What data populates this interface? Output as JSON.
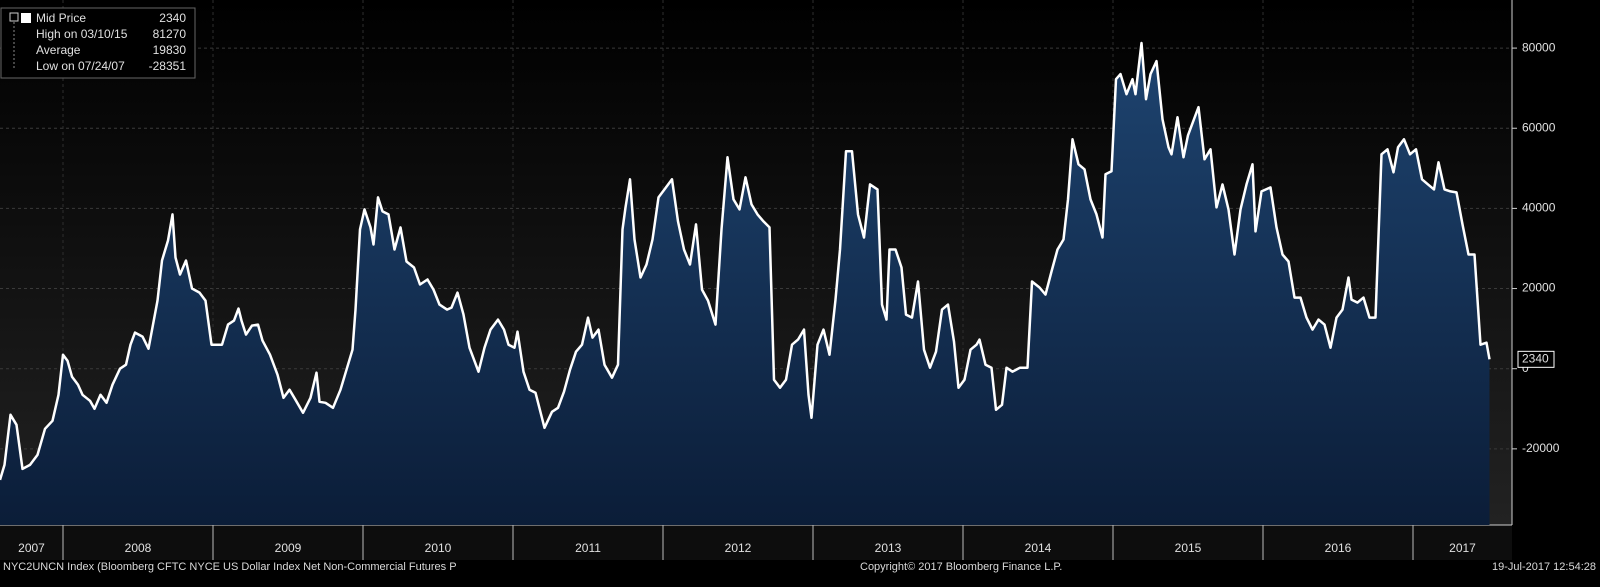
{
  "chart_data": {
    "type": "area",
    "series": [
      {
        "name": "Mid Price",
        "color": "#ffffff",
        "x": [
          2007.58,
          2007.61,
          2007.65,
          2007.69,
          2007.73,
          2007.78,
          2007.83,
          2007.88,
          2007.93,
          2007.97,
          2008.0,
          2008.03,
          2008.06,
          2008.1,
          2008.13,
          2008.18,
          2008.21,
          2008.25,
          2008.29,
          2008.33,
          2008.38,
          2008.42,
          2008.45,
          2008.48,
          2008.53,
          2008.57,
          2008.6,
          2008.63,
          2008.66,
          2008.7,
          2008.73,
          2008.75,
          2008.78,
          2008.82,
          2008.86,
          2008.91,
          2008.95,
          2008.99,
          2009.06,
          2009.1,
          2009.14,
          2009.17,
          2009.19,
          2009.22,
          2009.26,
          2009.3,
          2009.33,
          2009.38,
          2009.43,
          2009.47,
          2009.51,
          2009.55,
          2009.6,
          2009.65,
          2009.69,
          2009.71,
          2009.75,
          2009.8,
          2009.85,
          2009.89,
          2009.93,
          2009.95,
          2009.98,
          2010.01,
          2010.05,
          2010.07,
          2010.1,
          2010.13,
          2010.17,
          2010.21,
          2010.25,
          2010.29,
          2010.34,
          2010.38,
          2010.43,
          2010.47,
          2010.51,
          2010.56,
          2010.59,
          2010.63,
          2010.67,
          2010.71,
          2010.77,
          2010.81,
          2010.85,
          2010.9,
          2010.94,
          2010.97,
          2011.01,
          2011.03,
          2011.07,
          2011.11,
          2011.15,
          2011.21,
          2011.26,
          2011.3,
          2011.34,
          2011.38,
          2011.42,
          2011.46,
          2011.5,
          2011.53,
          2011.57,
          2011.61,
          2011.66,
          2011.7,
          2011.73,
          2011.75,
          2011.78,
          2011.81,
          2011.85,
          2011.89,
          2011.93,
          2011.97,
          2012.01,
          2012.06,
          2012.1,
          2012.14,
          2012.18,
          2012.22,
          2012.26,
          2012.3,
          2012.35,
          2012.39,
          2012.43,
          2012.47,
          2012.51,
          2012.55,
          2012.59,
          2012.63,
          2012.67,
          2012.71,
          2012.74,
          2012.78,
          2012.82,
          2012.86,
          2012.9,
          2012.94,
          2012.97,
          2012.99,
          2013.03,
          2013.07,
          2013.11,
          2013.15,
          2013.18,
          2013.22,
          2013.26,
          2013.3,
          2013.34,
          2013.38,
          2013.43,
          2013.46,
          2013.49,
          2013.51,
          2013.55,
          2013.59,
          2013.62,
          2013.66,
          2013.7,
          2013.74,
          2013.78,
          2013.82,
          2013.86,
          2013.9,
          2013.94,
          2013.97,
          2014.01,
          2014.05,
          2014.09,
          2014.11,
          2014.15,
          2014.19,
          2014.22,
          2014.26,
          2014.29,
          2014.33,
          2014.38,
          2014.43,
          2014.46,
          2014.51,
          2014.55,
          2014.59,
          2014.63,
          2014.67,
          2014.7,
          2014.73,
          2014.77,
          2014.81,
          2014.85,
          2014.89,
          2014.93,
          2014.95,
          2014.99,
          2015.02,
          2015.05,
          2015.09,
          2015.13,
          2015.15,
          2015.19,
          2015.22,
          2015.25,
          2015.29,
          2015.33,
          2015.37,
          2015.39,
          2015.43,
          2015.47,
          2015.5,
          2015.54,
          2015.57,
          2015.61,
          2015.65,
          2015.69,
          2015.73,
          2015.77,
          2015.81,
          2015.85,
          2015.89,
          2015.93,
          2015.95,
          2015.99,
          2016.05,
          2016.09,
          2016.13,
          2016.17,
          2016.21,
          2016.25,
          2016.29,
          2016.33,
          2016.37,
          2016.41,
          2016.45,
          2016.49,
          2016.53,
          2016.57,
          2016.59,
          2016.63,
          2016.67,
          2016.71,
          2016.75,
          2016.79,
          2016.83,
          2016.87,
          2016.9,
          2016.94,
          2016.98,
          2017.02,
          2017.06,
          2017.1,
          2017.14,
          2017.17,
          2017.21,
          2017.25,
          2017.29,
          2017.33,
          2017.37,
          2017.41,
          2017.45,
          2017.49,
          2017.51
        ],
        "values": [
          -27750,
          -24000,
          -11500,
          -14000,
          -25000,
          -24000,
          -21500,
          -15000,
          -13000,
          -6500,
          3500,
          2000,
          -2000,
          -4000,
          -6500,
          -8000,
          -10000,
          -6500,
          -8500,
          -4000,
          0,
          1000,
          6000,
          9000,
          8000,
          5000,
          11000,
          17000,
          27000,
          32000,
          38500,
          27750,
          23500,
          27000,
          20000,
          19000,
          17000,
          6000,
          6000,
          11000,
          12000,
          15000,
          12000,
          8500,
          10750,
          11000,
          7000,
          3500,
          -1500,
          -7250,
          -5250,
          -7750,
          -11000,
          -7250,
          -1000,
          -8250,
          -8500,
          -9750,
          -5250,
          -250,
          4750,
          14750,
          34750,
          39750,
          35250,
          31000,
          42750,
          39250,
          38500,
          29750,
          35250,
          26750,
          25250,
          21000,
          22250,
          19750,
          16000,
          14750,
          15250,
          19000,
          13500,
          5250,
          -750,
          5250,
          9750,
          12250,
          9750,
          6000,
          5250,
          9250,
          -750,
          -5250,
          -6000,
          -14750,
          -10750,
          -9750,
          -5750,
          -250,
          4250,
          6000,
          12750,
          7750,
          9750,
          1000,
          -2250,
          1000,
          34750,
          40250,
          47250,
          32250,
          22750,
          26000,
          32250,
          42750,
          44750,
          47250,
          36750,
          29750,
          26000,
          36000,
          19750,
          17000,
          11000,
          34750,
          52750,
          42250,
          39750,
          47750,
          41000,
          38500,
          36750,
          35250,
          -2750,
          -4750,
          -2750,
          6000,
          7250,
          9750,
          -6500,
          -12250,
          6000,
          9750,
          3500,
          17250,
          29750,
          54250,
          54250,
          38500,
          32750,
          46000,
          44750,
          16000,
          12250,
          29750,
          29750,
          25250,
          13500,
          12750,
          21750,
          4750,
          250,
          4250,
          14750,
          16000,
          6750,
          -4750,
          -2750,
          4750,
          6000,
          7250,
          1000,
          250,
          -10250,
          -9000,
          250,
          -750,
          250,
          250,
          21750,
          20250,
          18500,
          24250,
          29750,
          32250,
          42250,
          57250,
          51000,
          49750,
          42250,
          38500,
          32750,
          48500,
          49250,
          72250,
          73500,
          68500,
          72250,
          68500,
          81270,
          67250,
          73500,
          76750,
          62250,
          55250,
          53500,
          62750,
          52750,
          58250,
          62250,
          65250,
          52250,
          54750,
          40250,
          46000,
          39750,
          28500,
          39750,
          46000,
          51000,
          34250,
          44250,
          45250,
          35250,
          28500,
          26750,
          17750,
          17750,
          12750,
          9750,
          12250,
          11000,
          5250,
          12750,
          14750,
          22750,
          17250,
          16500,
          17750,
          12750,
          12750,
          53500,
          54750,
          49000,
          55250,
          57250,
          53500,
          54750,
          47250,
          46000,
          44750,
          51500,
          44750,
          44250,
          44000,
          36000,
          28500,
          28500,
          6000,
          6500,
          2340
        ]
      }
    ],
    "summary": [
      {
        "label": "High on 03/10/15",
        "value": 81270
      },
      {
        "label": "Average",
        "value": 19830
      },
      {
        "label": "Low on 07/24/07",
        "value": -28351
      }
    ],
    "xlim": [
      2007.58,
      2017.66
    ],
    "xticks": [
      2007,
      2008,
      2009,
      2010,
      2011,
      2012,
      2013,
      2014,
      2015,
      2016,
      2017
    ],
    "ylim": [
      -39000,
      92000
    ],
    "yticks": [
      -20000,
      0,
      20000,
      40000,
      60000,
      80000
    ],
    "grid": true,
    "fill_color": "#123259",
    "source": "NYC2UNCN Index (Bloomberg CFTC NYCE US Dollar Index Net Non-Commercial Futures P",
    "copyright": "Copyright© 2017 Bloomberg Finance L.P.",
    "timestamp": "19-Jul-2017 12:54:28"
  }
}
